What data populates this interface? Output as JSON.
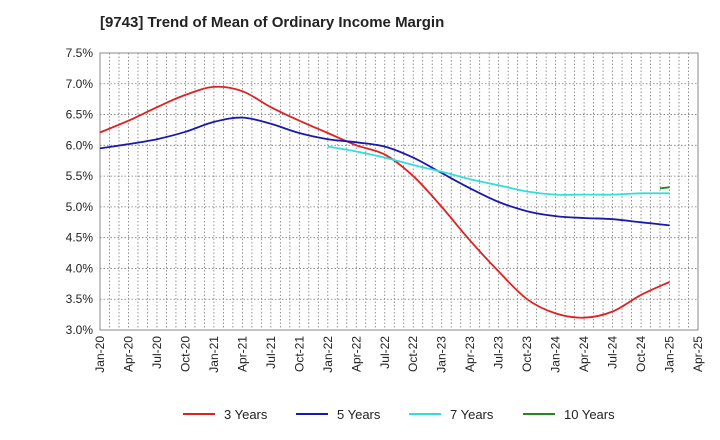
{
  "chart_data": {
    "type": "line",
    "title": "[9743]  Trend of Mean of Ordinary Income Margin",
    "xlabel": "",
    "ylabel": "",
    "ylim": [
      3.0,
      7.5
    ],
    "y_ticks": [
      "3.0%",
      "3.5%",
      "4.0%",
      "4.5%",
      "5.0%",
      "5.5%",
      "6.0%",
      "6.5%",
      "7.0%",
      "7.5%"
    ],
    "x_ticks": [
      "Jan-20",
      "Apr-20",
      "Jul-20",
      "Oct-20",
      "Jan-21",
      "Apr-21",
      "Jul-21",
      "Oct-21",
      "Jan-22",
      "Apr-22",
      "Jul-22",
      "Oct-22",
      "Jan-23",
      "Apr-23",
      "Jul-23",
      "Oct-23",
      "Jan-24",
      "Apr-24",
      "Jul-24",
      "Oct-24",
      "Jan-25",
      "Apr-25"
    ],
    "grid": true,
    "legend_position": "bottom",
    "series": [
      {
        "name": "3 Years",
        "color": "#dd2222",
        "x": [
          "Jan-20",
          "Apr-20",
          "Jul-20",
          "Oct-20",
          "Jan-21",
          "Apr-21",
          "Jul-21",
          "Oct-21",
          "Jan-22",
          "Apr-22",
          "Jul-22",
          "Oct-22",
          "Jan-23",
          "Apr-23",
          "Jul-23",
          "Oct-23",
          "Jan-24",
          "Apr-24",
          "Jul-24",
          "Oct-24",
          "Jan-25"
        ],
        "values": [
          6.21,
          6.4,
          6.62,
          6.82,
          6.95,
          6.88,
          6.62,
          6.4,
          6.2,
          6.0,
          5.85,
          5.5,
          5.0,
          4.45,
          3.95,
          3.5,
          3.27,
          3.2,
          3.3,
          3.57,
          3.78
        ]
      },
      {
        "name": "5 Years",
        "color": "#1a1aaa",
        "x": [
          "Jan-20",
          "Apr-20",
          "Jul-20",
          "Oct-20",
          "Jan-21",
          "Apr-21",
          "Jul-21",
          "Oct-21",
          "Jan-22",
          "Apr-22",
          "Jul-22",
          "Oct-22",
          "Jan-23",
          "Apr-23",
          "Jul-23",
          "Oct-23",
          "Jan-24",
          "Apr-24",
          "Jul-24",
          "Oct-24",
          "Jan-25"
        ],
        "values": [
          5.95,
          6.02,
          6.1,
          6.22,
          6.38,
          6.45,
          6.35,
          6.2,
          6.1,
          6.05,
          5.98,
          5.8,
          5.55,
          5.3,
          5.08,
          4.93,
          4.85,
          4.82,
          4.8,
          4.75,
          4.7
        ]
      },
      {
        "name": "7 Years",
        "color": "#33dddd",
        "x": [
          "Jan-22",
          "Apr-22",
          "Jul-22",
          "Oct-22",
          "Jan-23",
          "Apr-23",
          "Jul-23",
          "Oct-23",
          "Jan-24",
          "Apr-24",
          "Jul-24",
          "Oct-24",
          "Jan-25"
        ],
        "values": [
          5.98,
          5.9,
          5.8,
          5.68,
          5.57,
          5.45,
          5.35,
          5.25,
          5.2,
          5.2,
          5.2,
          5.22,
          5.22
        ]
      },
      {
        "name": "10 Years",
        "color": "#228822",
        "x": [
          "Dec-24",
          "Jan-25"
        ],
        "values": [
          5.3,
          5.32
        ]
      }
    ]
  }
}
